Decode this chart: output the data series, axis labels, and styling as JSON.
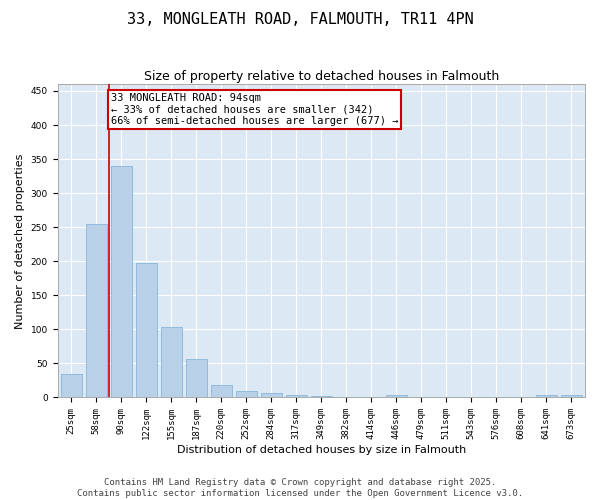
{
  "title": "33, MONGLEATH ROAD, FALMOUTH, TR11 4PN",
  "subtitle": "Size of property relative to detached houses in Falmouth",
  "xlabel": "Distribution of detached houses by size in Falmouth",
  "ylabel": "Number of detached properties",
  "bar_color": "#b8d0e8",
  "bar_edge_color": "#7aafd4",
  "background_color": "#dce9f5",
  "grid_color": "#ffffff",
  "categories": [
    "25sqm",
    "58sqm",
    "90sqm",
    "122sqm",
    "155sqm",
    "187sqm",
    "220sqm",
    "252sqm",
    "284sqm",
    "317sqm",
    "349sqm",
    "382sqm",
    "414sqm",
    "446sqm",
    "479sqm",
    "511sqm",
    "543sqm",
    "576sqm",
    "608sqm",
    "641sqm",
    "673sqm"
  ],
  "values": [
    35,
    255,
    340,
    197,
    103,
    57,
    18,
    10,
    7,
    4,
    2,
    1,
    0,
    3,
    0,
    0,
    0,
    0,
    0,
    3,
    3
  ],
  "ylim": [
    0,
    460
  ],
  "yticks": [
    0,
    50,
    100,
    150,
    200,
    250,
    300,
    350,
    400,
    450
  ],
  "property_line_bin": 2,
  "annotation_text": "33 MONGLEATH ROAD: 94sqm\n← 33% of detached houses are smaller (342)\n66% of semi-detached houses are larger (677) →",
  "annotation_box_color": "#ffffff",
  "annotation_box_edge": "#cc0000",
  "property_line_color": "#cc0000",
  "footer_line1": "Contains HM Land Registry data © Crown copyright and database right 2025.",
  "footer_line2": "Contains public sector information licensed under the Open Government Licence v3.0.",
  "title_fontsize": 11,
  "subtitle_fontsize": 9,
  "ylabel_fontsize": 8,
  "xlabel_fontsize": 8,
  "tick_fontsize": 6.5,
  "annotation_fontsize": 7.5,
  "footer_fontsize": 6.5
}
